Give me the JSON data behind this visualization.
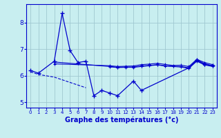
{
  "title": "Graphe des températures (°c)",
  "background_color": "#c8eef0",
  "line_color": "#0000cc",
  "grid_color": "#a0c8d0",
  "xlim": [
    -0.5,
    23.5
  ],
  "ylim": [
    4.8,
    8.7
  ],
  "yticks": [
    5,
    6,
    7,
    8
  ],
  "xtick_labels": [
    "0",
    "1",
    "2",
    "3",
    "4",
    "5",
    "6",
    "7",
    "8",
    "9",
    "10",
    "11",
    "12",
    "13",
    "14",
    "15",
    "16",
    "17",
    "18",
    "19",
    "20",
    "21",
    "22",
    "23"
  ],
  "main_x": [
    0,
    1,
    3,
    4,
    5,
    6,
    7,
    8,
    9,
    10,
    11,
    13,
    14,
    20,
    21,
    22,
    23
  ],
  "main_y": [
    6.2,
    6.1,
    6.55,
    8.35,
    6.95,
    6.5,
    6.55,
    5.25,
    5.45,
    5.35,
    5.25,
    5.8,
    5.45,
    6.3,
    6.6,
    6.45,
    6.38
  ],
  "ref1_x": [
    3,
    10,
    11,
    12,
    13,
    14,
    15,
    16,
    17,
    18,
    19,
    20,
    21,
    22,
    23
  ],
  "ref1_y": [
    6.52,
    6.35,
    6.32,
    6.33,
    6.33,
    6.37,
    6.39,
    6.42,
    6.38,
    6.36,
    6.35,
    6.3,
    6.57,
    6.42,
    6.38
  ],
  "ref2_x": [
    3,
    10,
    11,
    12,
    13,
    14,
    15,
    16,
    17,
    18,
    19,
    20,
    21,
    22,
    23
  ],
  "ref2_y": [
    6.45,
    6.38,
    6.35,
    6.36,
    6.37,
    6.42,
    6.44,
    6.47,
    6.43,
    6.39,
    6.4,
    6.35,
    6.62,
    6.5,
    6.42
  ],
  "ref3_x": [
    10,
    11,
    12,
    13,
    14,
    15,
    16,
    17,
    18,
    19,
    20,
    21,
    22,
    23
  ],
  "ref3_y": [
    6.34,
    6.31,
    6.32,
    6.32,
    6.35,
    6.38,
    6.41,
    6.37,
    6.35,
    6.33,
    6.28,
    6.55,
    6.41,
    6.35
  ],
  "drift_x": [
    0,
    1,
    3,
    5,
    6,
    7
  ],
  "drift_y": [
    6.15,
    6.05,
    5.95,
    5.75,
    5.65,
    5.55
  ]
}
